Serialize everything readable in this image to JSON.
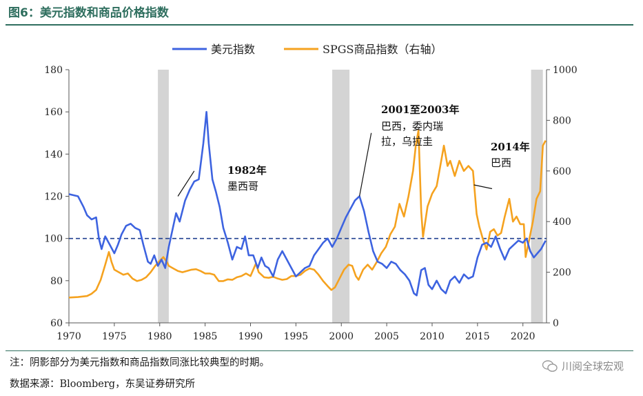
{
  "figure": {
    "title": "图6：美元指数和商品价格指数",
    "note": "注：阴影部分为美元指数和商品指数同涨比较典型的时期。",
    "source": "数据来源：Bloomberg，东吴证券研究所",
    "brand": "川阅全球宏观"
  },
  "chart_data": {
    "type": "line",
    "title": "",
    "xlim": [
      1970,
      2022.6
    ],
    "x_ticks": [
      1970,
      1975,
      1980,
      1985,
      1990,
      1995,
      2000,
      2005,
      2010,
      2015,
      2020
    ],
    "y_left": {
      "range": [
        60,
        180
      ],
      "ticks": [
        60,
        80,
        100,
        120,
        140,
        160,
        180
      ]
    },
    "y_right": {
      "range": [
        0,
        1000
      ],
      "ticks": [
        0,
        200,
        400,
        600,
        800,
        1000
      ]
    },
    "reference_line": {
      "axis": "left",
      "value": 100,
      "style": "dashed"
    },
    "shaded_periods": [
      [
        1979.8,
        1981.0
      ],
      [
        1999.0,
        2000.9
      ],
      [
        2020.9,
        2022.2
      ]
    ],
    "legend": {
      "position": "top"
    },
    "colors": {
      "usd": "#3d63e0",
      "spgs": "#f5a21f",
      "shade": "#d4d4d4",
      "ref": "#1f3f8f"
    },
    "series": [
      {
        "name": "美元指数",
        "axis": "left",
        "points": [
          [
            1970.0,
            121
          ],
          [
            1971.0,
            120
          ],
          [
            1971.6,
            115
          ],
          [
            1972.0,
            111
          ],
          [
            1972.5,
            109
          ],
          [
            1973.0,
            110
          ],
          [
            1973.3,
            100
          ],
          [
            1973.6,
            95
          ],
          [
            1974.0,
            101
          ],
          [
            1974.5,
            97
          ],
          [
            1975.0,
            93
          ],
          [
            1975.4,
            97
          ],
          [
            1975.8,
            102
          ],
          [
            1976.3,
            106
          ],
          [
            1976.8,
            107
          ],
          [
            1977.3,
            105
          ],
          [
            1977.8,
            104
          ],
          [
            1978.2,
            97
          ],
          [
            1978.7,
            89
          ],
          [
            1979.0,
            88
          ],
          [
            1979.4,
            92
          ],
          [
            1979.8,
            87
          ],
          [
            1980.2,
            90
          ],
          [
            1980.6,
            86
          ],
          [
            1981.0,
            96
          ],
          [
            1981.4,
            104
          ],
          [
            1981.8,
            112
          ],
          [
            1982.2,
            108
          ],
          [
            1982.8,
            118
          ],
          [
            1983.3,
            123
          ],
          [
            1983.8,
            127
          ],
          [
            1984.3,
            128
          ],
          [
            1984.8,
            145
          ],
          [
            1985.15,
            160
          ],
          [
            1985.4,
            145
          ],
          [
            1985.8,
            128
          ],
          [
            1986.2,
            122
          ],
          [
            1986.6,
            115
          ],
          [
            1987.0,
            105
          ],
          [
            1987.5,
            98
          ],
          [
            1988.0,
            90
          ],
          [
            1988.5,
            96
          ],
          [
            1989.0,
            95
          ],
          [
            1989.4,
            101
          ],
          [
            1989.8,
            92
          ],
          [
            1990.3,
            92
          ],
          [
            1990.8,
            86
          ],
          [
            1991.2,
            91
          ],
          [
            1991.6,
            87
          ],
          [
            1992.0,
            86
          ],
          [
            1992.5,
            82
          ],
          [
            1993.0,
            90
          ],
          [
            1993.5,
            94
          ],
          [
            1994.0,
            90
          ],
          [
            1994.5,
            86
          ],
          [
            1995.0,
            82
          ],
          [
            1995.5,
            84
          ],
          [
            1996.0,
            86
          ],
          [
            1996.5,
            87
          ],
          [
            1997.0,
            92
          ],
          [
            1997.5,
            95
          ],
          [
            1998.0,
            98
          ],
          [
            1998.5,
            100
          ],
          [
            1999.0,
            96
          ],
          [
            1999.5,
            100
          ],
          [
            2000.0,
            105
          ],
          [
            2000.5,
            110
          ],
          [
            2001.0,
            114
          ],
          [
            2001.5,
            118
          ],
          [
            2002.0,
            120
          ],
          [
            2002.5,
            113
          ],
          [
            2003.0,
            103
          ],
          [
            2003.5,
            94
          ],
          [
            2004.0,
            89
          ],
          [
            2004.5,
            88
          ],
          [
            2005.0,
            86
          ],
          [
            2005.5,
            89
          ],
          [
            2006.0,
            88
          ],
          [
            2006.5,
            85
          ],
          [
            2007.0,
            83
          ],
          [
            2007.5,
            80
          ],
          [
            2008.0,
            74
          ],
          [
            2008.3,
            73
          ],
          [
            2008.8,
            85
          ],
          [
            2009.2,
            86
          ],
          [
            2009.6,
            78
          ],
          [
            2010.0,
            76
          ],
          [
            2010.5,
            80
          ],
          [
            2011.0,
            76
          ],
          [
            2011.5,
            74
          ],
          [
            2012.0,
            80
          ],
          [
            2012.5,
            82
          ],
          [
            2013.0,
            79
          ],
          [
            2013.5,
            83
          ],
          [
            2014.0,
            81
          ],
          [
            2014.5,
            82
          ],
          [
            2015.0,
            91
          ],
          [
            2015.5,
            97
          ],
          [
            2016.0,
            98
          ],
          [
            2016.5,
            96
          ],
          [
            2017.0,
            101
          ],
          [
            2017.5,
            95
          ],
          [
            2018.0,
            90
          ],
          [
            2018.5,
            95
          ],
          [
            2019.0,
            97
          ],
          [
            2019.5,
            99
          ],
          [
            2020.0,
            98
          ],
          [
            2020.4,
            100
          ],
          [
            2020.8,
            94
          ],
          [
            2021.2,
            91
          ],
          [
            2021.6,
            93
          ],
          [
            2022.0,
            95
          ],
          [
            2022.5,
            99
          ]
        ]
      },
      {
        "name": "SPGS商品指数（右轴）",
        "axis": "right",
        "points": [
          [
            1970.0,
            100
          ],
          [
            1971.0,
            102
          ],
          [
            1972.0,
            106
          ],
          [
            1972.5,
            115
          ],
          [
            1973.0,
            130
          ],
          [
            1973.5,
            170
          ],
          [
            1974.0,
            230
          ],
          [
            1974.4,
            280
          ],
          [
            1974.7,
            240
          ],
          [
            1975.0,
            210
          ],
          [
            1975.5,
            200
          ],
          [
            1976.0,
            190
          ],
          [
            1976.5,
            195
          ],
          [
            1977.0,
            175
          ],
          [
            1977.5,
            165
          ],
          [
            1978.0,
            170
          ],
          [
            1978.5,
            180
          ],
          [
            1979.0,
            200
          ],
          [
            1979.5,
            225
          ],
          [
            1980.0,
            245
          ],
          [
            1980.4,
            260
          ],
          [
            1980.8,
            240
          ],
          [
            1981.0,
            225
          ],
          [
            1981.5,
            215
          ],
          [
            1982.0,
            205
          ],
          [
            1982.5,
            200
          ],
          [
            1983.0,
            205
          ],
          [
            1983.5,
            210
          ],
          [
            1984.0,
            212
          ],
          [
            1984.5,
            205
          ],
          [
            1985.0,
            195
          ],
          [
            1985.5,
            195
          ],
          [
            1986.0,
            190
          ],
          [
            1986.5,
            165
          ],
          [
            1987.0,
            165
          ],
          [
            1987.5,
            172
          ],
          [
            1988.0,
            170
          ],
          [
            1988.5,
            180
          ],
          [
            1989.0,
            185
          ],
          [
            1989.5,
            195
          ],
          [
            1990.0,
            185
          ],
          [
            1990.6,
            235
          ],
          [
            1990.9,
            200
          ],
          [
            1991.5,
            180
          ],
          [
            1992.0,
            178
          ],
          [
            1992.5,
            182
          ],
          [
            1993.0,
            175
          ],
          [
            1993.5,
            170
          ],
          [
            1994.0,
            173
          ],
          [
            1994.5,
            185
          ],
          [
            1995.0,
            185
          ],
          [
            1995.5,
            190
          ],
          [
            1996.0,
            205
          ],
          [
            1996.5,
            215
          ],
          [
            1997.0,
            210
          ],
          [
            1997.5,
            190
          ],
          [
            1998.0,
            165
          ],
          [
            1998.5,
            145
          ],
          [
            1998.9,
            130
          ],
          [
            1999.3,
            140
          ],
          [
            1999.8,
            175
          ],
          [
            2000.3,
            210
          ],
          [
            2000.8,
            230
          ],
          [
            2001.2,
            225
          ],
          [
            2001.6,
            185
          ],
          [
            2001.9,
            170
          ],
          [
            2002.4,
            210
          ],
          [
            2002.9,
            230
          ],
          [
            2003.4,
            210
          ],
          [
            2003.9,
            240
          ],
          [
            2004.4,
            275
          ],
          [
            2004.9,
            300
          ],
          [
            2005.4,
            350
          ],
          [
            2005.9,
            380
          ],
          [
            2006.4,
            470
          ],
          [
            2006.9,
            420
          ],
          [
            2007.4,
            500
          ],
          [
            2007.9,
            600
          ],
          [
            2008.2,
            700
          ],
          [
            2008.5,
            760
          ],
          [
            2008.8,
            440
          ],
          [
            2009.0,
            340
          ],
          [
            2009.5,
            460
          ],
          [
            2010.0,
            510
          ],
          [
            2010.5,
            540
          ],
          [
            2011.0,
            640
          ],
          [
            2011.3,
            700
          ],
          [
            2011.7,
            620
          ],
          [
            2012.0,
            640
          ],
          [
            2012.5,
            580
          ],
          [
            2013.0,
            640
          ],
          [
            2013.5,
            600
          ],
          [
            2014.0,
            620
          ],
          [
            2014.5,
            600
          ],
          [
            2014.9,
            430
          ],
          [
            2015.2,
            380
          ],
          [
            2015.6,
            330
          ],
          [
            2016.0,
            290
          ],
          [
            2016.4,
            360
          ],
          [
            2016.8,
            370
          ],
          [
            2017.2,
            345
          ],
          [
            2017.6,
            355
          ],
          [
            2018.0,
            420
          ],
          [
            2018.5,
            490
          ],
          [
            2018.9,
            400
          ],
          [
            2019.3,
            420
          ],
          [
            2019.7,
            390
          ],
          [
            2020.1,
            390
          ],
          [
            2020.3,
            260
          ],
          [
            2020.7,
            330
          ],
          [
            2021.1,
            400
          ],
          [
            2021.5,
            490
          ],
          [
            2021.9,
            520
          ],
          [
            2022.2,
            700
          ],
          [
            2022.5,
            720
          ]
        ]
      }
    ],
    "annotations": [
      {
        "label": "1982年",
        "text": "墨西哥",
        "x": 1982.0,
        "y_left": 120
      },
      {
        "label": "2001至2003年",
        "text": "巴西，委内瑞拉，乌拉圭",
        "x": 2002.0,
        "y_left": 120
      },
      {
        "label": "2014年",
        "text": "巴西",
        "x": 2014.5,
        "y_right": 550
      }
    ]
  }
}
